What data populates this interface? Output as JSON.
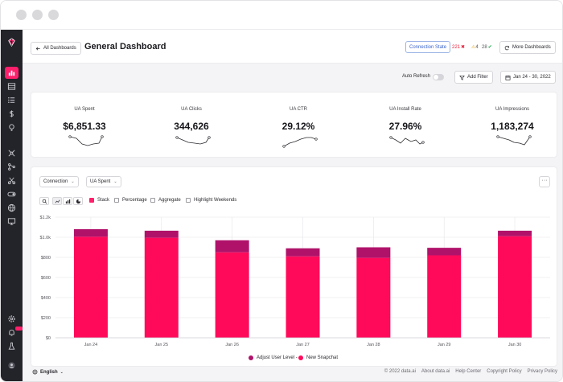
{
  "header": {
    "back_label": "All Dashboards",
    "title": "General Dashboard",
    "connection_state": "Connection State",
    "error_count": "221",
    "warning_count": "4",
    "ok_count": "28",
    "more_dashboards": "More Dashboards"
  },
  "toolbar": {
    "auto_refresh_label": "Auto Refresh",
    "auto_refresh_on": false,
    "add_filter_label": "Add Filter",
    "date_range": "Jan 24 - 30, 2022"
  },
  "kpis": [
    {
      "label": "UA Spent",
      "value": "$6,851.33"
    },
    {
      "label": "UA Clicks",
      "value": "344,626"
    },
    {
      "label": "UA CTR",
      "value": "29.12%"
    },
    {
      "label": "UA Install Rate",
      "value": "27.96%"
    },
    {
      "label": "UA Impressions",
      "value": "1,183,274"
    }
  ],
  "chart_controls": {
    "dimension": "Connection",
    "metric": "UA Spent",
    "options": [
      {
        "label": "Stack",
        "checked": true
      },
      {
        "label": "Percentage",
        "checked": false
      },
      {
        "label": "Aggregate",
        "checked": false
      },
      {
        "label": "Highlight Weekends",
        "checked": false
      }
    ]
  },
  "colors": {
    "accent": "#ff1f6b",
    "series_adjust": "#b0126a",
    "series_snapchat": "#ff0a5b",
    "sidebar": "#23232a"
  },
  "chart_data": {
    "type": "bar",
    "stacked": true,
    "categories": [
      "Jan 24",
      "Jan 25",
      "Jan 26",
      "Jan 27",
      "Jan 28",
      "Jan 29",
      "Jan 30"
    ],
    "series": [
      {
        "name": "New Snapchat",
        "values": [
          1005,
          995,
          850,
          810,
          795,
          820,
          1010
        ]
      },
      {
        "name": "Adjust User Level -",
        "values": [
          75,
          70,
          120,
          80,
          105,
          75,
          55
        ]
      }
    ],
    "y_ticks": [
      "$0",
      "$200",
      "$400",
      "$600",
      "$800",
      "$1.0k",
      "$1.2k"
    ],
    "ylim": [
      0,
      1200
    ],
    "grid": true,
    "legend": "bottom-center"
  },
  "footer": {
    "language": "English",
    "links": [
      "© 2022 data.ai",
      "About data.ai",
      "Help Center",
      "Copyright Policy",
      "Privacy Policy"
    ]
  }
}
